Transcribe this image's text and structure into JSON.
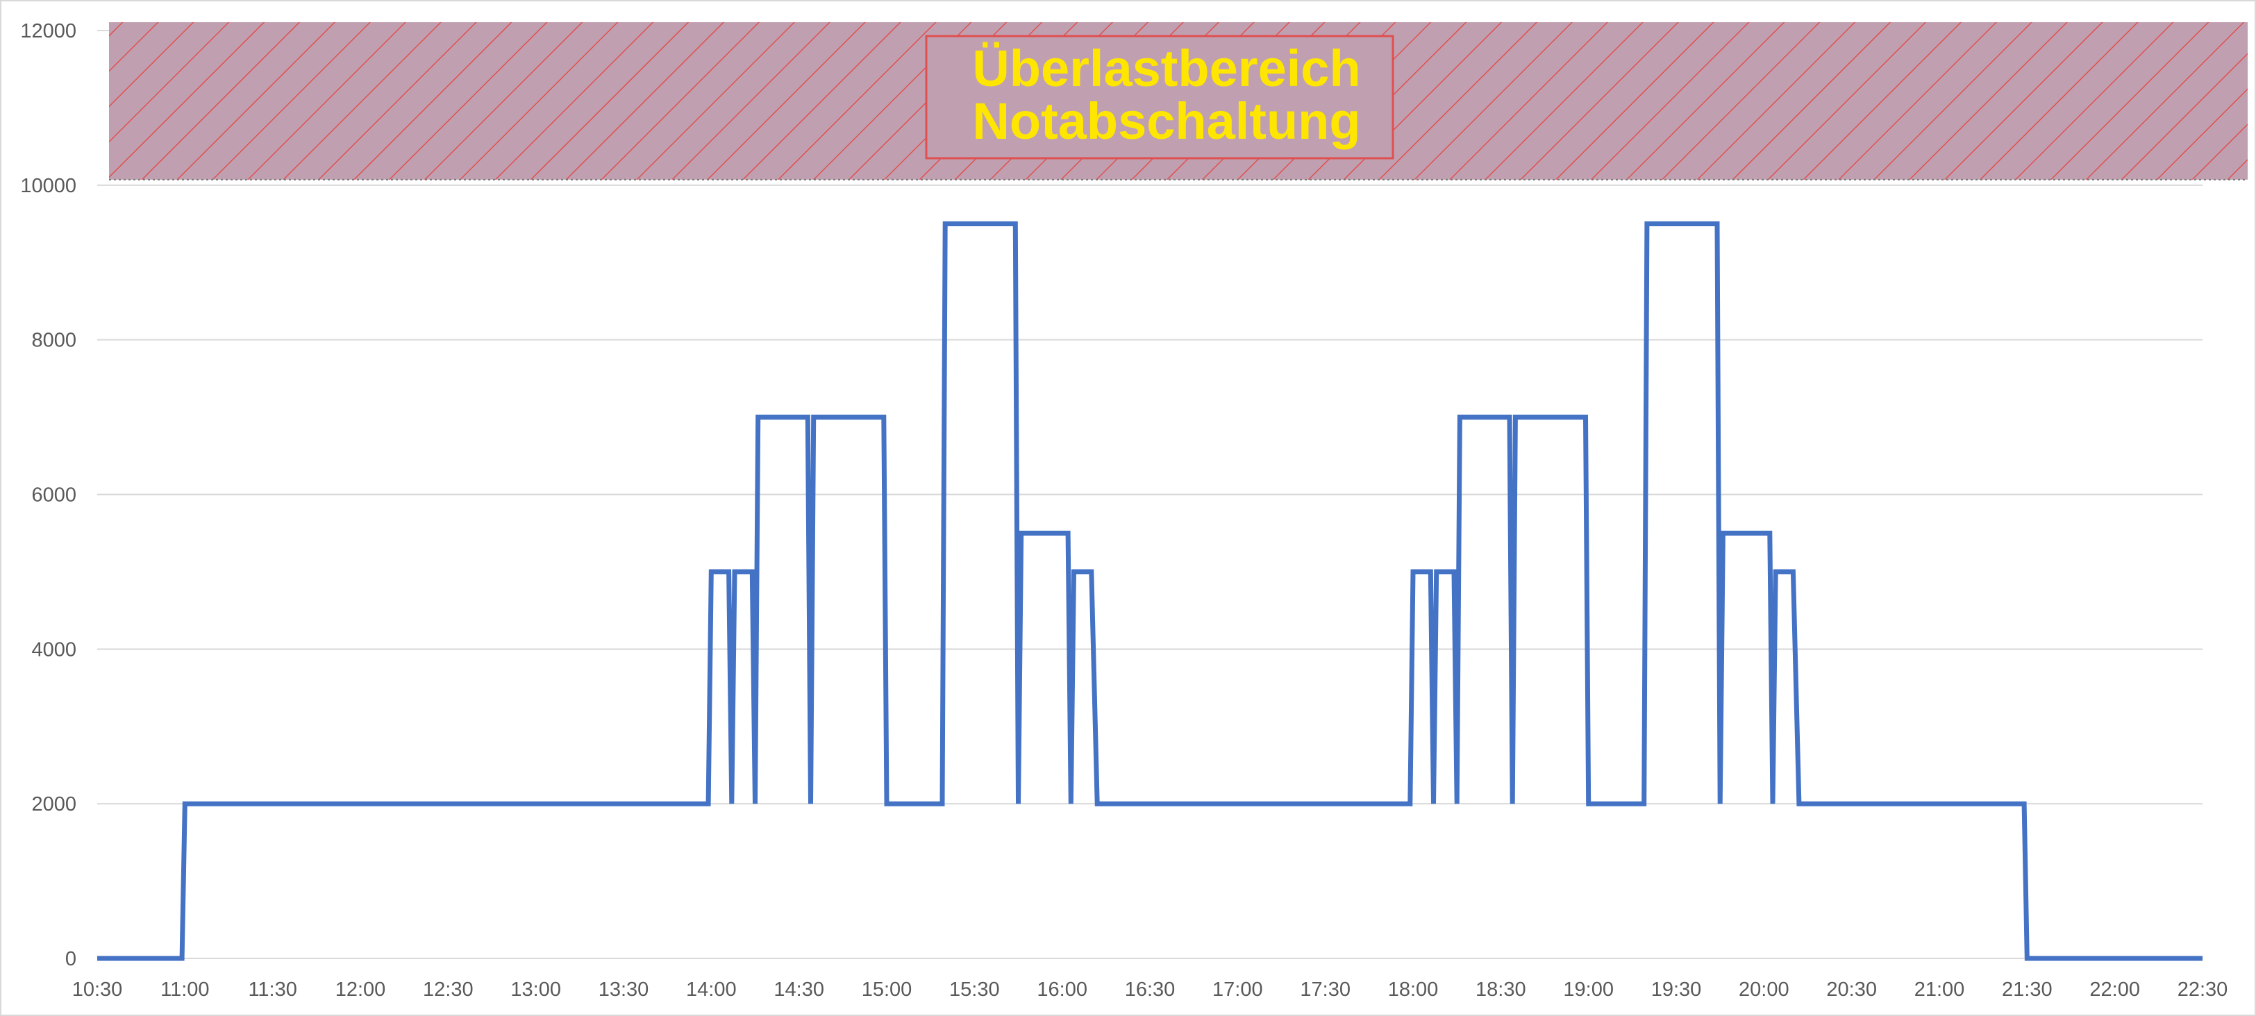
{
  "chart_data": {
    "type": "line",
    "title": "",
    "xlabel": "",
    "ylabel": "",
    "ylim": [
      0,
      12000
    ],
    "yticks": [
      0,
      2000,
      4000,
      6000,
      8000,
      10000,
      12000
    ],
    "xlim": [
      "10:30",
      "22:30"
    ],
    "xticks": [
      "10:30",
      "11:00",
      "11:30",
      "12:00",
      "12:30",
      "13:00",
      "13:30",
      "14:00",
      "14:30",
      "15:00",
      "15:30",
      "16:00",
      "16:30",
      "17:00",
      "17:30",
      "18:00",
      "18:30",
      "19:00",
      "19:30",
      "20:00",
      "20:30",
      "21:00",
      "21:30",
      "22:00",
      "22:30"
    ],
    "grid": true,
    "legend": "none",
    "series": [
      {
        "color": "#4472c4",
        "points": [
          [
            "10:30",
            0
          ],
          [
            "10:59",
            0
          ],
          [
            "11:00",
            2000
          ],
          [
            "13:59",
            2000
          ],
          [
            "14:00",
            5000
          ],
          [
            "14:06",
            5000
          ],
          [
            "14:07",
            2000
          ],
          [
            "14:08",
            5000
          ],
          [
            "14:14",
            5000
          ],
          [
            "14:15",
            2000
          ],
          [
            "14:16",
            7000
          ],
          [
            "14:33",
            7000
          ],
          [
            "14:34",
            2000
          ],
          [
            "14:35",
            7000
          ],
          [
            "14:59",
            7000
          ],
          [
            "15:00",
            2000
          ],
          [
            "15:19",
            2000
          ],
          [
            "15:20",
            9500
          ],
          [
            "15:44",
            9500
          ],
          [
            "15:45",
            2000
          ],
          [
            "15:46",
            5500
          ],
          [
            "16:02",
            5500
          ],
          [
            "16:03",
            2000
          ],
          [
            "16:04",
            5000
          ],
          [
            "16:10",
            5000
          ],
          [
            "16:12",
            2000
          ],
          [
            "17:59",
            2000
          ],
          [
            "18:00",
            5000
          ],
          [
            "18:06",
            5000
          ],
          [
            "18:07",
            2000
          ],
          [
            "18:08",
            5000
          ],
          [
            "18:14",
            5000
          ],
          [
            "18:15",
            2000
          ],
          [
            "18:16",
            7000
          ],
          [
            "18:33",
            7000
          ],
          [
            "18:34",
            2000
          ],
          [
            "18:35",
            7000
          ],
          [
            "18:59",
            7000
          ],
          [
            "19:00",
            2000
          ],
          [
            "19:19",
            2000
          ],
          [
            "19:20",
            9500
          ],
          [
            "19:44",
            9500
          ],
          [
            "19:45",
            2000
          ],
          [
            "19:46",
            5500
          ],
          [
            "20:02",
            5500
          ],
          [
            "20:03",
            2000
          ],
          [
            "20:04",
            5000
          ],
          [
            "20:10",
            5000
          ],
          [
            "20:12",
            2000
          ],
          [
            "21:29",
            2000
          ],
          [
            "21:30",
            0
          ],
          [
            "22:30",
            0
          ]
        ]
      }
    ],
    "overload_zone": {
      "from": 10000,
      "to": 12000,
      "fill_color": "#c0a0b0",
      "hatch_color": "#e05050",
      "label_lines": [
        "Überlastbereich",
        "Notabschaltung"
      ],
      "label_color": "#ffe600",
      "label_box_border": "#e05050"
    }
  }
}
